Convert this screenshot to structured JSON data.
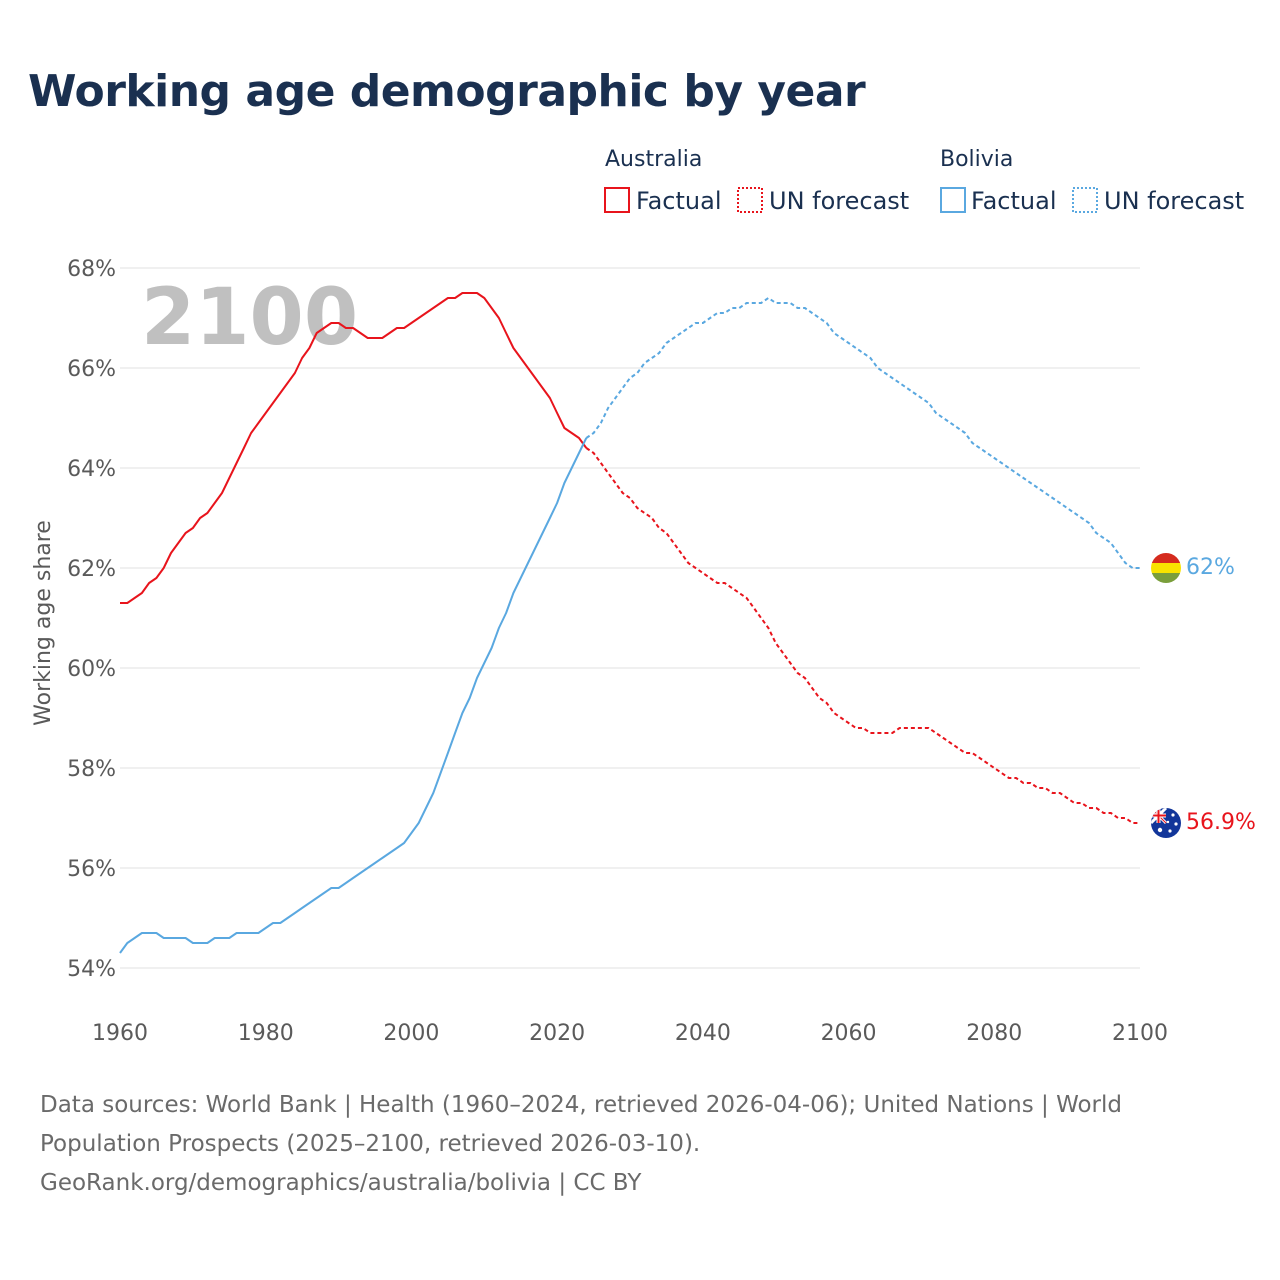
{
  "title": "Working age demographic by year",
  "footer": {
    "sources_line1": "Data sources: World Bank | Health (1960–2024, retrieved 2026-04-06); United Nations | World",
    "sources_line2": "Population Prospects (2025–2100, retrieved 2026-03-10).",
    "link": "GeoRank.org/demographics/australia/bolivia | CC BY"
  },
  "chart_data": {
    "type": "line",
    "title": "Working age demographic by year",
    "xlabel": "",
    "ylabel": "Working age share",
    "xlim": [
      1960,
      2100
    ],
    "ylim": [
      54,
      68
    ],
    "x_ticks": [
      1960,
      1980,
      2000,
      2020,
      2040,
      2060,
      2080,
      2100
    ],
    "x_tick_labels": [
      "1960",
      "1980",
      "2000",
      "2020",
      "2040",
      "2060",
      "2080",
      "2100"
    ],
    "y_ticks": [
      54,
      56,
      58,
      60,
      62,
      64,
      66,
      68
    ],
    "y_tick_labels": [
      "54%",
      "56%",
      "58%",
      "60%",
      "62%",
      "64%",
      "66%",
      "68%"
    ],
    "grid": true,
    "current_year_label": "2100",
    "legend": {
      "position": "top-right",
      "groups": [
        {
          "country": "Australia",
          "factual": "Factual",
          "forecast": "UN forecast",
          "color": "#e8141c"
        },
        {
          "country": "Bolivia",
          "factual": "Factual",
          "forecast": "UN forecast",
          "color": "#5aa8e0"
        }
      ]
    },
    "series": [
      {
        "name": "Australia",
        "color": "#e8141c",
        "end_label": "56.9%",
        "factual": {
          "x": [
            1960,
            1961,
            1962,
            1963,
            1964,
            1965,
            1966,
            1967,
            1968,
            1969,
            1970,
            1971,
            1972,
            1973,
            1974,
            1975,
            1976,
            1977,
            1978,
            1979,
            1980,
            1981,
            1982,
            1983,
            1984,
            1985,
            1986,
            1987,
            1988,
            1989,
            1990,
            1991,
            1992,
            1993,
            1994,
            1995,
            1996,
            1997,
            1998,
            1999,
            2000,
            2001,
            2002,
            2003,
            2004,
            2005,
            2006,
            2007,
            2008,
            2009,
            2010,
            2011,
            2012,
            2013,
            2014,
            2015,
            2016,
            2017,
            2018,
            2019,
            2020,
            2021,
            2022,
            2023,
            2024
          ],
          "y": [
            61.3,
            61.3,
            61.4,
            61.5,
            61.7,
            61.8,
            62.0,
            62.3,
            62.5,
            62.7,
            62.8,
            63.0,
            63.1,
            63.3,
            63.5,
            63.8,
            64.1,
            64.4,
            64.7,
            64.9,
            65.1,
            65.3,
            65.5,
            65.7,
            65.9,
            66.2,
            66.4,
            66.7,
            66.8,
            66.9,
            66.9,
            66.8,
            66.8,
            66.7,
            66.6,
            66.6,
            66.6,
            66.7,
            66.8,
            66.8,
            66.9,
            67.0,
            67.1,
            67.2,
            67.3,
            67.4,
            67.4,
            67.5,
            67.5,
            67.5,
            67.4,
            67.2,
            67.0,
            66.7,
            66.4,
            66.2,
            66.0,
            65.8,
            65.6,
            65.4,
            65.1,
            64.8,
            64.7,
            64.6,
            64.4
          ]
        },
        "forecast": {
          "x": [
            2024,
            2025,
            2026,
            2027,
            2028,
            2029,
            2030,
            2031,
            2032,
            2033,
            2034,
            2035,
            2036,
            2037,
            2038,
            2039,
            2040,
            2041,
            2042,
            2043,
            2044,
            2045,
            2046,
            2047,
            2048,
            2049,
            2050,
            2051,
            2052,
            2053,
            2054,
            2055,
            2056,
            2057,
            2058,
            2059,
            2060,
            2061,
            2062,
            2063,
            2064,
            2065,
            2066,
            2067,
            2068,
            2069,
            2070,
            2071,
            2072,
            2073,
            2074,
            2075,
            2076,
            2077,
            2078,
            2079,
            2080,
            2081,
            2082,
            2083,
            2084,
            2085,
            2086,
            2087,
            2088,
            2089,
            2090,
            2091,
            2092,
            2093,
            2094,
            2095,
            2096,
            2097,
            2098,
            2099,
            2100
          ],
          "y": [
            64.4,
            64.3,
            64.1,
            63.9,
            63.7,
            63.5,
            63.4,
            63.2,
            63.1,
            63.0,
            62.8,
            62.7,
            62.5,
            62.3,
            62.1,
            62.0,
            61.9,
            61.8,
            61.7,
            61.7,
            61.6,
            61.5,
            61.4,
            61.2,
            61.0,
            60.8,
            60.5,
            60.3,
            60.1,
            59.9,
            59.8,
            59.6,
            59.4,
            59.3,
            59.1,
            59.0,
            58.9,
            58.8,
            58.8,
            58.7,
            58.7,
            58.7,
            58.7,
            58.8,
            58.8,
            58.8,
            58.8,
            58.8,
            58.7,
            58.6,
            58.5,
            58.4,
            58.3,
            58.3,
            58.2,
            58.1,
            58.0,
            57.9,
            57.8,
            57.8,
            57.7,
            57.7,
            57.6,
            57.6,
            57.5,
            57.5,
            57.4,
            57.3,
            57.3,
            57.2,
            57.2,
            57.1,
            57.1,
            57.0,
            57.0,
            56.9,
            56.9
          ]
        }
      },
      {
        "name": "Bolivia",
        "color": "#5aa8e0",
        "end_label": "62%",
        "factual": {
          "x": [
            1960,
            1961,
            1962,
            1963,
            1964,
            1965,
            1966,
            1967,
            1968,
            1969,
            1970,
            1971,
            1972,
            1973,
            1974,
            1975,
            1976,
            1977,
            1978,
            1979,
            1980,
            1981,
            1982,
            1983,
            1984,
            1985,
            1986,
            1987,
            1988,
            1989,
            1990,
            1991,
            1992,
            1993,
            1994,
            1995,
            1996,
            1997,
            1998,
            1999,
            2000,
            2001,
            2002,
            2003,
            2004,
            2005,
            2006,
            2007,
            2008,
            2009,
            2010,
            2011,
            2012,
            2013,
            2014,
            2015,
            2016,
            2017,
            2018,
            2019,
            2020,
            2021,
            2022,
            2023,
            2024
          ],
          "y": [
            54.3,
            54.5,
            54.6,
            54.7,
            54.7,
            54.7,
            54.6,
            54.6,
            54.6,
            54.6,
            54.5,
            54.5,
            54.5,
            54.6,
            54.6,
            54.6,
            54.7,
            54.7,
            54.7,
            54.7,
            54.8,
            54.9,
            54.9,
            55.0,
            55.1,
            55.2,
            55.3,
            55.4,
            55.5,
            55.6,
            55.6,
            55.7,
            55.8,
            55.9,
            56.0,
            56.1,
            56.2,
            56.3,
            56.4,
            56.5,
            56.7,
            56.9,
            57.2,
            57.5,
            57.9,
            58.3,
            58.7,
            59.1,
            59.4,
            59.8,
            60.1,
            60.4,
            60.8,
            61.1,
            61.5,
            61.8,
            62.1,
            62.4,
            62.7,
            63.0,
            63.3,
            63.7,
            64.0,
            64.3,
            64.6
          ]
        },
        "forecast": {
          "x": [
            2024,
            2025,
            2026,
            2027,
            2028,
            2029,
            2030,
            2031,
            2032,
            2033,
            2034,
            2035,
            2036,
            2037,
            2038,
            2039,
            2040,
            2041,
            2042,
            2043,
            2044,
            2045,
            2046,
            2047,
            2048,
            2049,
            2050,
            2051,
            2052,
            2053,
            2054,
            2055,
            2056,
            2057,
            2058,
            2059,
            2060,
            2061,
            2062,
            2063,
            2064,
            2065,
            2066,
            2067,
            2068,
            2069,
            2070,
            2071,
            2072,
            2073,
            2074,
            2075,
            2076,
            2077,
            2078,
            2079,
            2080,
            2081,
            2082,
            2083,
            2084,
            2085,
            2086,
            2087,
            2088,
            2089,
            2090,
            2091,
            2092,
            2093,
            2094,
            2095,
            2096,
            2097,
            2098,
            2099,
            2100
          ],
          "y": [
            64.6,
            64.7,
            64.9,
            65.2,
            65.4,
            65.6,
            65.8,
            65.9,
            66.1,
            66.2,
            66.3,
            66.5,
            66.6,
            66.7,
            66.8,
            66.9,
            66.9,
            67.0,
            67.1,
            67.1,
            67.2,
            67.2,
            67.3,
            67.3,
            67.3,
            67.4,
            67.3,
            67.3,
            67.3,
            67.2,
            67.2,
            67.1,
            67.0,
            66.9,
            66.7,
            66.6,
            66.5,
            66.4,
            66.3,
            66.2,
            66.0,
            65.9,
            65.8,
            65.7,
            65.6,
            65.5,
            65.4,
            65.3,
            65.1,
            65.0,
            64.9,
            64.8,
            64.7,
            64.5,
            64.4,
            64.3,
            64.2,
            64.1,
            64.0,
            63.9,
            63.8,
            63.7,
            63.6,
            63.5,
            63.4,
            63.3,
            63.2,
            63.1,
            63.0,
            62.9,
            62.7,
            62.6,
            62.5,
            62.3,
            62.1,
            62.0,
            62.0
          ]
        }
      }
    ]
  }
}
